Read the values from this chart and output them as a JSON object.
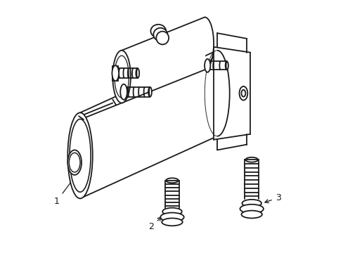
{
  "background_color": "#ffffff",
  "line_color": "#1a1a1a",
  "line_width": 1.3,
  "label_1": "1",
  "label_2": "2",
  "label_3": "3"
}
